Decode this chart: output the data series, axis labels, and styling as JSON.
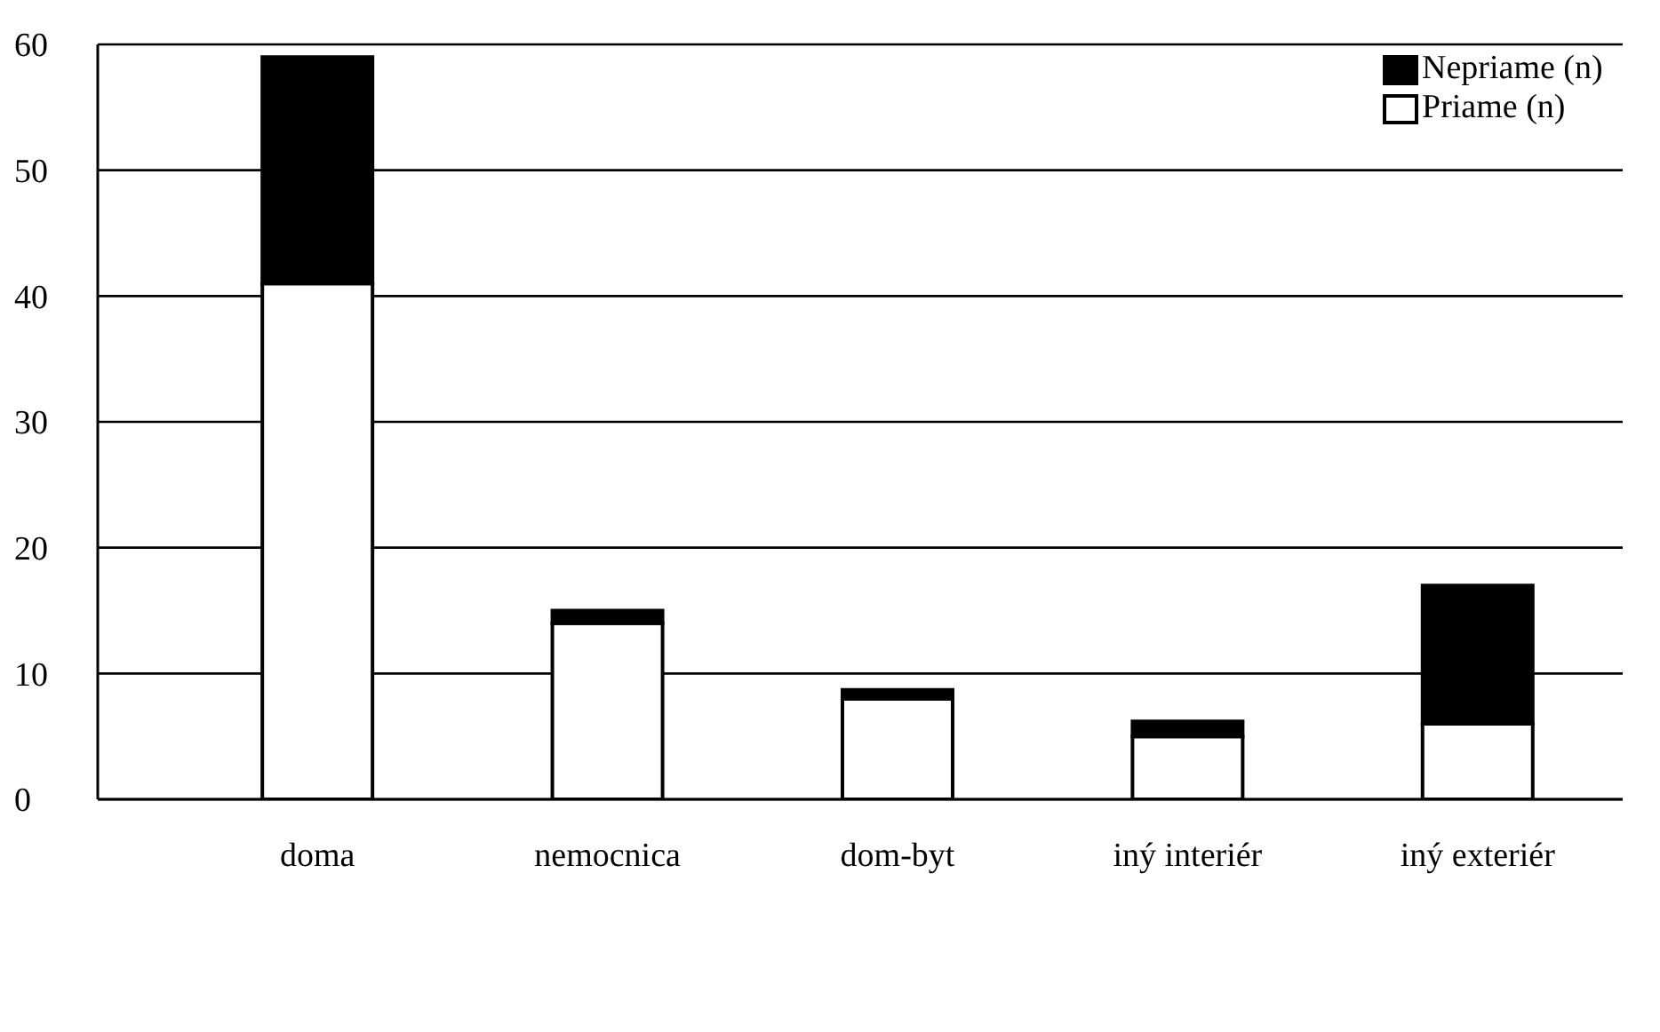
{
  "chart_data": {
    "type": "bar",
    "stacked": true,
    "categories": [
      "doma",
      "nemocnica",
      "dom-byt",
      "iný interiér",
      "iný exteriér"
    ],
    "series": [
      {
        "name": "Priame (n)",
        "color": "#ffffff",
        "values": [
          41,
          14,
          8,
          5,
          6
        ]
      },
      {
        "name": "Nepriame (n)",
        "color": "#000000",
        "values": [
          18,
          1,
          0.7,
          1.2,
          11
        ]
      }
    ],
    "ylim": [
      0,
      60
    ],
    "yticks": [
      0,
      10,
      20,
      30,
      40,
      50,
      60
    ],
    "grid": "y",
    "legend": "top right"
  }
}
